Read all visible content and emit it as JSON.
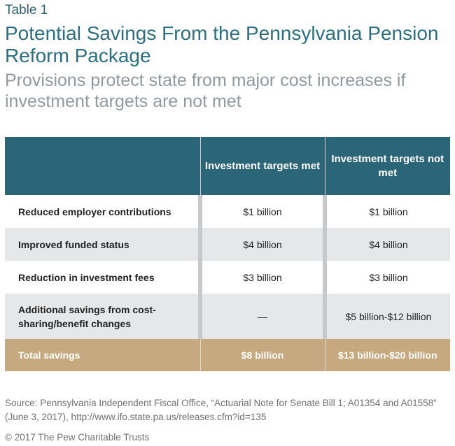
{
  "label": "Table 1",
  "title": "Potential Savings From the Pennsylvania Pension Reform Package",
  "subtitle": "Provisions protect state from major cost increases if investment targets are not met",
  "table": {
    "headers": [
      "",
      "Investment targets met",
      "Investment targets not met"
    ],
    "rows": [
      {
        "label": "Reduced employer contributions",
        "met": "$1 billion",
        "not_met": "$1 billion"
      },
      {
        "label": "Improved funded status",
        "met": "$4 billion",
        "not_met": "$4 billion"
      },
      {
        "label": "Reduction in investment fees",
        "met": "$3 billion",
        "not_met": "$3 billion"
      },
      {
        "label": "Additional savings from cost-sharing/benefit changes",
        "met": "—",
        "not_met": "$5 billion-$12 billion"
      }
    ],
    "total": {
      "label": "Total savings",
      "met": "$8 billion",
      "not_met": "$13 billion-$20 billion"
    }
  },
  "source": "Source: Pennsylvania Independent Fiscal Office, “Actuarial Note for Senate Bill 1; A01354 and A01558” (June 3, 2017), http://www.ifo.state.pa.us/releases.cfm?id=135",
  "copyright": "© 2017 The Pew Charitable Trusts",
  "colors": {
    "header": "#2b6578",
    "total": "#c6a97e",
    "stripe": "#e6e7e8",
    "title": "#2a7080",
    "subtitle": "#8f9aa0"
  }
}
